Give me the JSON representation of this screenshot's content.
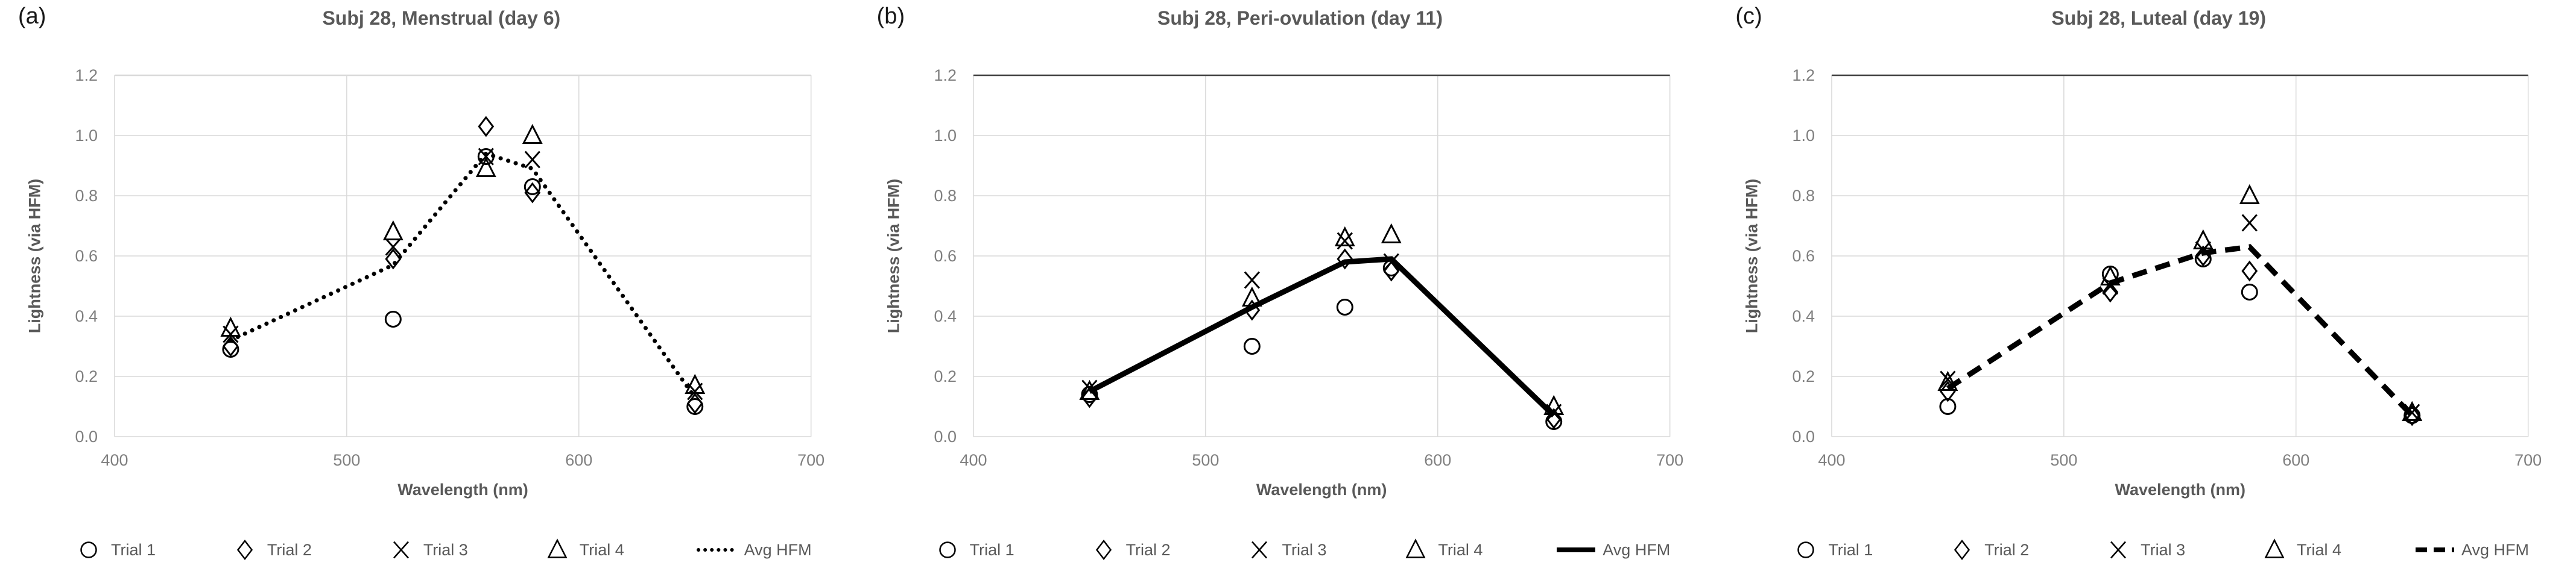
{
  "figure_caption_labels": [
    "(a)",
    "(b)",
    "(c)"
  ],
  "colors": {
    "marker": "#000000",
    "avg_line": "#000000",
    "grid": "#d9d9d9",
    "plot_border": "#d9d9d9",
    "tick_label": "#7f7f7f",
    "title_text": "#595959",
    "axis_title_text": "#595959",
    "legend_text": "#595959",
    "panel_label": "#1a1a1a"
  },
  "chart_data": [
    {
      "type": "scatter",
      "panel_label": "(a)",
      "title": "Subj 28, Menstrual (day 6)",
      "xlabel": "Wavelength (nm)",
      "ylabel": "Lightness (via HFM)",
      "xlim": [
        400,
        700
      ],
      "ylim": [
        0.0,
        1.2
      ],
      "x_ticks": [
        400,
        500,
        600,
        700
      ],
      "y_ticks": [
        "0.0",
        "0.2",
        "0.4",
        "0.6",
        "0.8",
        "1.0",
        "1.2"
      ],
      "grid": true,
      "legend_position": "bottom",
      "top_border_color": "#d9d9d9",
      "x": [
        450,
        520,
        560,
        580,
        650
      ],
      "series": [
        {
          "name": "Trial 1",
          "marker": "circle",
          "values": [
            0.29,
            0.39,
            0.93,
            0.83,
            0.1
          ]
        },
        {
          "name": "Trial 2",
          "marker": "diamond",
          "values": [
            0.3,
            0.59,
            1.03,
            0.81,
            0.11
          ]
        },
        {
          "name": "Trial 3",
          "marker": "x",
          "values": [
            0.34,
            0.63,
            0.93,
            0.92,
            0.15
          ]
        },
        {
          "name": "Trial 4",
          "marker": "triangle",
          "values": [
            0.36,
            0.68,
            0.89,
            1.0,
            0.17
          ]
        },
        {
          "name": "Avg HFM",
          "marker": "none",
          "line_style": "dotted",
          "values": [
            0.32,
            0.57,
            0.94,
            0.89,
            0.13
          ]
        }
      ]
    },
    {
      "type": "scatter",
      "panel_label": "(b)",
      "title": "Subj 28, Peri-ovulation (day 11)",
      "xlabel": "Wavelength (nm)",
      "ylabel": "Lightness (via HFM)",
      "xlim": [
        400,
        700
      ],
      "ylim": [
        0.0,
        1.2
      ],
      "x_ticks": [
        400,
        500,
        600,
        700
      ],
      "y_ticks": [
        "0.0",
        "0.2",
        "0.4",
        "0.6",
        "0.8",
        "1.0",
        "1.2"
      ],
      "grid": true,
      "legend_position": "bottom",
      "top_border_color": "#404040",
      "x": [
        450,
        520,
        560,
        580,
        650
      ],
      "series": [
        {
          "name": "Trial 1",
          "marker": "circle",
          "values": [
            0.14,
            0.3,
            0.43,
            0.56,
            0.05
          ]
        },
        {
          "name": "Trial 2",
          "marker": "diamond",
          "values": [
            0.13,
            0.42,
            0.59,
            0.55,
            0.06
          ]
        },
        {
          "name": "Trial 3",
          "marker": "x",
          "values": [
            0.16,
            0.52,
            0.65,
            0.58,
            0.08
          ]
        },
        {
          "name": "Trial 4",
          "marker": "triangle",
          "values": [
            0.15,
            0.46,
            0.66,
            0.67,
            0.1
          ]
        },
        {
          "name": "Avg HFM",
          "marker": "none",
          "line_style": "solid",
          "values": [
            0.15,
            0.43,
            0.58,
            0.59,
            0.07
          ]
        }
      ]
    },
    {
      "type": "scatter",
      "panel_label": "(c)",
      "title": "Subj 28, Luteal (day 19)",
      "xlabel": "Wavelength (nm)",
      "ylabel": "Lightness (via HFM)",
      "xlim": [
        400,
        700
      ],
      "ylim": [
        0.0,
        1.2
      ],
      "x_ticks": [
        400,
        500,
        600,
        700
      ],
      "y_ticks": [
        "0.0",
        "0.2",
        "0.4",
        "0.6",
        "0.8",
        "1.0",
        "1.2"
      ],
      "grid": true,
      "legend_position": "bottom",
      "top_border_color": "#404040",
      "x": [
        450,
        520,
        560,
        580,
        650
      ],
      "series": [
        {
          "name": "Trial 1",
          "marker": "circle",
          "values": [
            0.1,
            0.54,
            0.59,
            0.48,
            0.07
          ]
        },
        {
          "name": "Trial 2",
          "marker": "diamond",
          "values": [
            0.15,
            0.48,
            0.6,
            0.55,
            0.07
          ]
        },
        {
          "name": "Trial 3",
          "marker": "x",
          "values": [
            0.19,
            0.5,
            0.62,
            0.71,
            0.08
          ]
        },
        {
          "name": "Trial 4",
          "marker": "triangle",
          "values": [
            0.18,
            0.53,
            0.65,
            0.8,
            0.08
          ]
        },
        {
          "name": "Avg HFM",
          "marker": "none",
          "line_style": "dashed",
          "values": [
            0.16,
            0.51,
            0.61,
            0.63,
            0.07
          ]
        }
      ]
    }
  ]
}
